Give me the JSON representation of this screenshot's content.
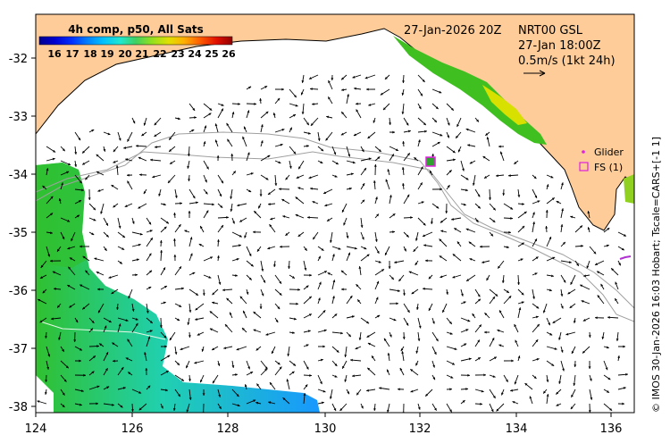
{
  "colorbar": {
    "title": "4h comp, p50, All Sats",
    "ticks": [
      "16",
      "17",
      "18",
      "19",
      "20",
      "21",
      "22",
      "23",
      "24",
      "25",
      "26"
    ],
    "colors": [
      "#000090",
      "#0000d0",
      "#0030ff",
      "#0080ff",
      "#00c0ff",
      "#20e8d0",
      "#40d060",
      "#90e020",
      "#e0e000",
      "#ffb000",
      "#ff6000",
      "#e01000",
      "#900000"
    ]
  },
  "header": {
    "date": "27-Jan-2026 20Z",
    "product": "NRT00 GSL",
    "time": "27-Jan 18:00Z",
    "scale": "0.5m/s (1kt 24h)"
  },
  "legend": {
    "glider": "Glider",
    "fs": "FS (1)",
    "glider_color": "#e020e0",
    "fs_color": "#e020e0"
  },
  "axes": {
    "x_ticks": [
      "124",
      "126",
      "128",
      "130",
      "132",
      "134",
      "136"
    ],
    "y_ticks": [
      "-32",
      "-33",
      "-34",
      "-35",
      "-36",
      "-37",
      "-38"
    ]
  },
  "credit": "© IMOS 30-Jan-2026 16:03 Hobart; Tscale=CARS+[-1 1]",
  "colors": {
    "land": "#fecc98",
    "sst_green": "#30c030",
    "sst_cyan": "#20d0c0",
    "sst_blue": "#1898ff",
    "contour": "#a0a0a0"
  }
}
